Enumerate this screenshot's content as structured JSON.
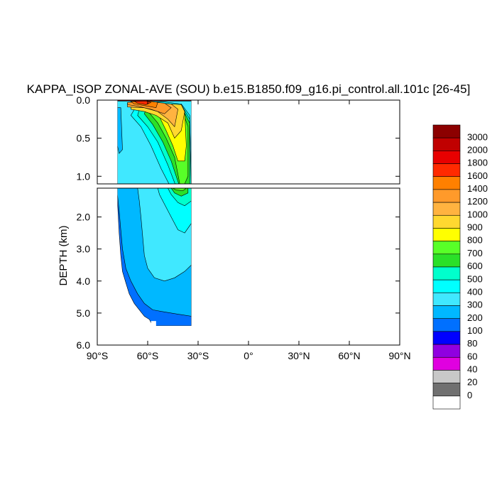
{
  "chart_data": {
    "type": "heatmap",
    "title": "KAPPA_ISOP ZONAL-AVE (SOU) b.e15.B1850.f09_g16.pi_control.all.101c [26-45]",
    "ylabel": "DEPTH (km)",
    "xlabel": "",
    "x_ticks": [
      "90°S",
      "60°S",
      "30°S",
      "0°",
      "30°N",
      "60°N",
      "90°N"
    ],
    "x_range": [
      -90,
      90
    ],
    "y_upper_ticks": [
      "0.0",
      "0.5",
      "1.0"
    ],
    "y_upper_range": [
      0.0,
      1.1
    ],
    "y_lower_ticks": [
      "2.0",
      "3.0",
      "4.0",
      "5.0",
      "6.0"
    ],
    "y_lower_range": [
      1.1,
      6.0
    ],
    "colorbar": {
      "labels": [
        "3000",
        "2000",
        "1800",
        "1600",
        "1400",
        "1200",
        "1000",
        "900",
        "800",
        "700",
        "600",
        "500",
        "400",
        "300",
        "200",
        "100",
        "80",
        "60",
        "40",
        "20",
        "0"
      ],
      "colors": [
        "#8c0000",
        "#c00000",
        "#e80000",
        "#ff2a00",
        "#ff8000",
        "#ff9a2a",
        "#ffb340",
        "#ffd830",
        "#ffff00",
        "#58ff28",
        "#2ae028",
        "#00ffcc",
        "#00ffff",
        "#40e8ff",
        "#00b8ff",
        "#0070ff",
        "#0000ff",
        "#9000e0",
        "#e000e0",
        "#c8c8c8",
        "#707070",
        "#ffffff"
      ]
    },
    "data_extent": {
      "lat_range": [
        -78,
        -34
      ],
      "max_depth_km": 5.4
    },
    "grid": false,
    "legend_position": "right"
  }
}
